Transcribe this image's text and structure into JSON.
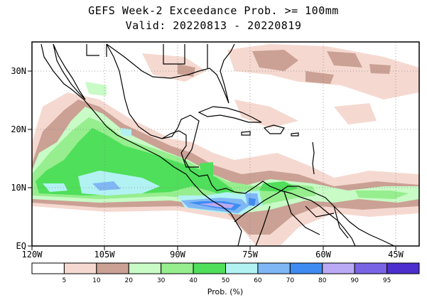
{
  "title_line1": "GEFS Week-2 Exceedance Prob. >= 100mm",
  "title_line2": "Valid: 20220813 - 20220819",
  "axes": {
    "lon_labels": [
      "120W",
      "105W",
      "90W",
      "75W",
      "60W",
      "45W"
    ],
    "lat_labels": [
      "30N",
      "20N",
      "10N",
      "EQ"
    ]
  },
  "colorbar": {
    "label": "Prob. (%)",
    "tick_labels": [
      "5",
      "10",
      "20",
      "30",
      "40",
      "50",
      "60",
      "70",
      "80",
      "90",
      "95"
    ],
    "colors": [
      "#ffffff",
      "#f5d9d0",
      "#caa194",
      "#c8fbc6",
      "#96ee8e",
      "#4fdf5a",
      "#b2f2f3",
      "#7fb7f5",
      "#3e8cf2",
      "#baa9f4",
      "#7a64e6",
      "#4d2fcf"
    ]
  }
}
